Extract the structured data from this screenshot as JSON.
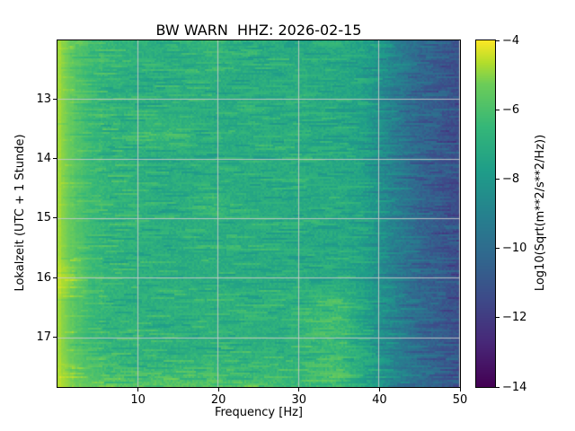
{
  "figure": {
    "background": "#ffffff",
    "text_color": "#000000"
  },
  "chart_data": {
    "type": "heatmap",
    "subtype": "spectrogram",
    "title": "BW WARN  HHZ: 2026-02-15",
    "xlabel": "Frequency [Hz]",
    "ylabel": "Lokalzeit (UTC + 1 Stunde)",
    "xlim": [
      0,
      50
    ],
    "ylim": [
      12.02,
      17.83
    ],
    "y_direction": "down",
    "x_ticks": [
      10,
      20,
      30,
      40,
      50
    ],
    "x_tick_labels": [
      "10",
      "20",
      "30",
      "40",
      "50"
    ],
    "y_ticks": [
      13,
      14,
      15,
      16,
      17
    ],
    "y_tick_labels": [
      "13",
      "14",
      "15",
      "16",
      "17"
    ],
    "grid": true,
    "grid_color": "#c9c9c9",
    "colormap": "viridis",
    "colorbar": {
      "label": "Log10(Sqrt(m**2/s**2/Hz))",
      "vmin": -14,
      "vmax": -4,
      "ticks": [
        -4,
        -6,
        -8,
        -10,
        -12,
        -14
      ],
      "tick_labels": [
        "−4",
        "−6",
        "−8",
        "−10",
        "−12",
        "−14"
      ]
    },
    "col_freqs": [
      0,
      2,
      4,
      6,
      8,
      10,
      12,
      14,
      16,
      18,
      20,
      22,
      24,
      26,
      28,
      30,
      32,
      34,
      36,
      38,
      40,
      42,
      44,
      46,
      48,
      50
    ],
    "row_times": [
      12.02,
      12.4,
      12.8,
      13.2,
      13.6,
      14.0,
      14.4,
      14.8,
      15.2,
      15.6,
      16.0,
      16.4,
      16.8,
      17.2,
      17.6,
      17.83
    ],
    "values": [
      [
        -4.7,
        -5.5,
        -6.2,
        -6.5,
        -6.7,
        -6.8,
        -6.9,
        -6.9,
        -6.9,
        -6.5,
        -6.4,
        -7.0,
        -7.0,
        -7.0,
        -7.0,
        -7.1,
        -7.1,
        -7.1,
        -7.2,
        -7.5,
        -8.1,
        -9.0,
        -9.8,
        -10.4,
        -10.8,
        -11.2
      ],
      [
        -4.7,
        -5.6,
        -6.3,
        -6.6,
        -6.8,
        -6.9,
        -7.0,
        -7.0,
        -7.0,
        -6.9,
        -6.9,
        -7.0,
        -7.1,
        -7.1,
        -7.1,
        -7.1,
        -7.2,
        -7.2,
        -7.3,
        -7.6,
        -8.2,
        -9.1,
        -9.9,
        -10.5,
        -10.9,
        -11.3
      ],
      [
        -4.7,
        -5.6,
        -6.3,
        -6.6,
        -6.8,
        -6.9,
        -7.0,
        -7.0,
        -7.0,
        -7.0,
        -7.0,
        -7.1,
        -7.1,
        -7.1,
        -7.1,
        -7.1,
        -7.2,
        -7.2,
        -7.3,
        -7.6,
        -8.3,
        -9.2,
        -10.0,
        -10.6,
        -11.0,
        -11.4
      ],
      [
        -4.7,
        -5.6,
        -6.3,
        -6.6,
        -6.8,
        -6.9,
        -7.0,
        -7.0,
        -7.0,
        -7.0,
        -7.0,
        -7.1,
        -7.1,
        -7.1,
        -7.1,
        -7.1,
        -7.2,
        -7.2,
        -7.3,
        -7.6,
        -8.3,
        -9.2,
        -10.0,
        -10.6,
        -11.0,
        -11.4
      ],
      [
        -4.7,
        -5.6,
        -6.3,
        -6.6,
        -6.8,
        -6.8,
        -6.4,
        -6.3,
        -6.5,
        -7.0,
        -7.0,
        -7.1,
        -7.1,
        -7.1,
        -7.1,
        -7.1,
        -7.2,
        -7.2,
        -7.3,
        -7.6,
        -8.3,
        -9.2,
        -10.0,
        -10.6,
        -11.0,
        -11.4
      ],
      [
        -4.7,
        -5.6,
        -6.3,
        -6.6,
        -6.8,
        -6.9,
        -7.0,
        -7.0,
        -7.0,
        -7.0,
        -7.0,
        -7.1,
        -7.1,
        -7.1,
        -7.1,
        -7.1,
        -7.2,
        -7.2,
        -7.3,
        -7.6,
        -8.3,
        -9.2,
        -10.0,
        -10.6,
        -11.0,
        -11.4
      ],
      [
        -4.7,
        -5.6,
        -6.3,
        -6.6,
        -6.8,
        -6.9,
        -7.0,
        -7.0,
        -7.0,
        -7.0,
        -7.0,
        -7.1,
        -7.1,
        -7.1,
        -7.1,
        -7.1,
        -7.2,
        -7.2,
        -7.3,
        -7.6,
        -8.3,
        -9.2,
        -10.0,
        -10.6,
        -11.0,
        -11.4
      ],
      [
        -4.7,
        -5.6,
        -6.3,
        -6.6,
        -6.8,
        -6.9,
        -7.0,
        -7.0,
        -7.0,
        -6.6,
        -6.3,
        -7.0,
        -7.1,
        -7.1,
        -7.1,
        -7.1,
        -7.2,
        -7.2,
        -7.3,
        -7.6,
        -8.3,
        -9.2,
        -10.0,
        -10.6,
        -11.0,
        -11.4
      ],
      [
        -4.7,
        -5.6,
        -6.3,
        -6.6,
        -6.8,
        -6.9,
        -7.0,
        -7.0,
        -7.0,
        -7.0,
        -7.0,
        -7.1,
        -7.1,
        -7.1,
        -7.1,
        -7.1,
        -7.2,
        -7.2,
        -7.3,
        -7.6,
        -8.3,
        -9.2,
        -10.0,
        -10.6,
        -11.0,
        -11.4
      ],
      [
        -4.7,
        -5.6,
        -6.3,
        -6.6,
        -6.8,
        -6.9,
        -7.0,
        -7.0,
        -7.0,
        -7.0,
        -7.0,
        -7.1,
        -7.1,
        -7.1,
        -7.1,
        -7.1,
        -7.2,
        -7.2,
        -7.3,
        -7.6,
        -8.3,
        -9.2,
        -10.0,
        -10.6,
        -11.0,
        -11.4
      ],
      [
        -4.4,
        -5.0,
        -6.2,
        -6.6,
        -6.8,
        -6.9,
        -7.0,
        -7.0,
        -7.0,
        -7.0,
        -7.0,
        -7.1,
        -7.1,
        -7.1,
        -7.1,
        -7.1,
        -7.2,
        -7.2,
        -7.3,
        -7.6,
        -8.3,
        -9.2,
        -10.0,
        -10.6,
        -11.0,
        -11.4
      ],
      [
        -4.7,
        -5.6,
        -6.3,
        -6.6,
        -6.8,
        -6.8,
        -6.9,
        -6.9,
        -6.9,
        -6.9,
        -6.8,
        -6.9,
        -6.9,
        -6.9,
        -6.9,
        -6.9,
        -6.5,
        -6.4,
        -6.6,
        -7.4,
        -8.2,
        -9.1,
        -9.9,
        -10.5,
        -10.9,
        -11.3
      ],
      [
        -4.7,
        -5.6,
        -6.3,
        -6.6,
        -6.7,
        -6.8,
        -6.9,
        -6.9,
        -6.9,
        -6.8,
        -6.8,
        -6.8,
        -6.9,
        -6.9,
        -6.9,
        -6.8,
        -6.4,
        -6.3,
        -6.5,
        -7.3,
        -8.1,
        -9.0,
        -9.8,
        -10.4,
        -10.8,
        -11.2
      ],
      [
        -4.7,
        -5.6,
        -6.3,
        -6.6,
        -6.7,
        -6.8,
        -6.8,
        -6.9,
        -6.9,
        -6.8,
        -6.8,
        -6.8,
        -6.8,
        -6.9,
        -6.9,
        -6.8,
        -6.5,
        -6.4,
        -6.6,
        -7.3,
        -8.1,
        -9.0,
        -9.8,
        -10.4,
        -10.8,
        -11.2
      ],
      [
        -4.6,
        -5.3,
        -5.9,
        -6.1,
        -6.2,
        -6.3,
        -6.3,
        -6.3,
        -6.3,
        -6.3,
        -6.3,
        -6.4,
        -6.4,
        -6.5,
        -6.6,
        -6.7,
        -6.3,
        -6.2,
        -6.4,
        -7.2,
        -8.0,
        -8.9,
        -9.7,
        -10.3,
        -10.7,
        -11.1
      ],
      [
        -4.5,
        -5.1,
        -5.5,
        -5.6,
        -5.6,
        -5.6,
        -5.6,
        -5.6,
        -5.7,
        -5.7,
        -5.7,
        -5.8,
        -5.9,
        -6.1,
        -6.3,
        -6.5,
        -6.3,
        -6.2,
        -6.4,
        -7.2,
        -8.1,
        -9.0,
        -9.8,
        -10.4,
        -10.8,
        -11.2
      ]
    ]
  }
}
